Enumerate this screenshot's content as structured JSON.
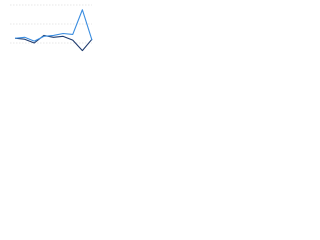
{
  "chart_data": {
    "type": "line",
    "x": [
      0,
      1,
      2,
      3,
      4,
      5,
      6,
      7,
      8
    ],
    "series": [
      {
        "color": "#1f3b6e",
        "values": [
          5,
          4,
          0,
          8,
          6,
          7,
          3,
          -8,
          4
        ]
      },
      {
        "color": "#3a8de0",
        "values": [
          5,
          6,
          2,
          7,
          8,
          10,
          9,
          35,
          3
        ]
      }
    ],
    "xlim": [
      0,
      8
    ],
    "ylim": [
      -20,
      40
    ],
    "yticks": [
      0,
      20,
      40
    ],
    "grid": true
  }
}
